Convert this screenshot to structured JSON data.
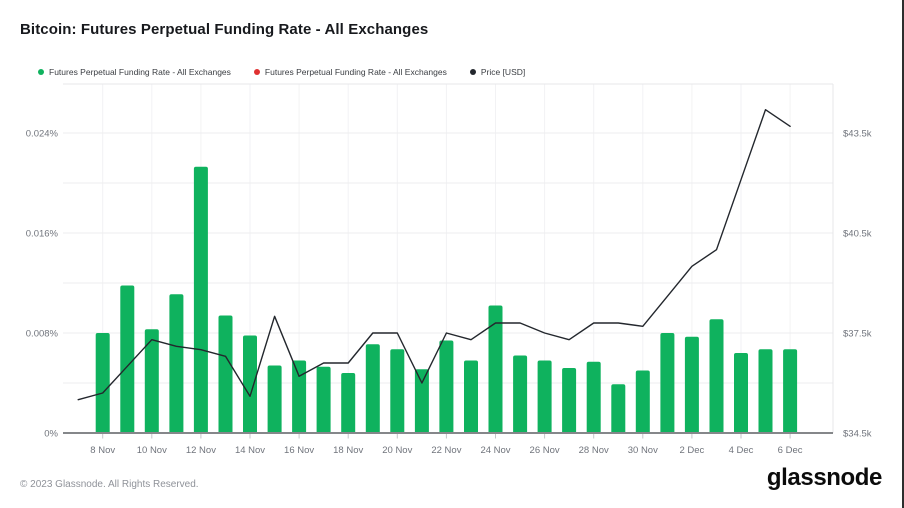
{
  "page": {
    "title": "Bitcoin: Futures Perpetual Funding Rate - All Exchanges",
    "footer_copyright": "© 2023 Glassnode. All Rights Reserved.",
    "brand_wordmark": "glassnode"
  },
  "colors": {
    "funding_positive": "#0fb25e",
    "funding_negative": "#e03131",
    "price_line": "#23272d",
    "gridline": "#ededef",
    "plot_border": "#e7e7ea",
    "axis_line": "#85878a",
    "tick_mark": "#c4c6c9",
    "tick_text": "#70747c"
  },
  "legend": [
    {
      "label": "Futures Perpetual Funding Rate - All Exchanges",
      "color": "#0fb25e"
    },
    {
      "label": "Futures Perpetual Funding Rate - All Exchanges",
      "color": "#e03131"
    },
    {
      "label": "Price [USD]",
      "color": "#23272d"
    }
  ],
  "chart_data": {
    "type": "combo (bar + line)",
    "title": "Bitcoin: Futures Perpetual Funding Rate - All Exchanges",
    "grid": "horizontal + vertical, light gray",
    "x_all": [
      "7 Nov",
      "8 Nov",
      "9 Nov",
      "10 Nov",
      "11 Nov",
      "12 Nov",
      "13 Nov",
      "14 Nov",
      "15 Nov",
      "16 Nov",
      "17 Nov",
      "18 Nov",
      "19 Nov",
      "20 Nov",
      "21 Nov",
      "22 Nov",
      "23 Nov",
      "24 Nov",
      "25 Nov",
      "26 Nov",
      "27 Nov",
      "28 Nov",
      "29 Nov",
      "30 Nov",
      "1 Dec",
      "2 Dec",
      "3 Dec",
      "4 Dec",
      "5 Dec",
      "6 Dec"
    ],
    "x_tick_labels": [
      "8 Nov",
      "10 Nov",
      "12 Nov",
      "14 Nov",
      "16 Nov",
      "18 Nov",
      "20 Nov",
      "22 Nov",
      "24 Nov",
      "26 Nov",
      "28 Nov",
      "30 Nov",
      "2 Dec",
      "4 Dec",
      "6 Dec"
    ],
    "left_axis": {
      "unit": "%",
      "tick_labels": [
        "0%",
        "0.008%",
        "0.016%",
        "0.024%"
      ],
      "tick_values": [
        0,
        0.008,
        0.016,
        0.024
      ],
      "grid_step": 0.004,
      "range": [
        0,
        0.0279
      ]
    },
    "right_axis": {
      "unit": "USD (thousands)",
      "tick_labels": [
        "$34.5k",
        "$37.5k",
        "$40.5k",
        "$43.5k"
      ],
      "tick_values": [
        34.5,
        37.5,
        40.5,
        43.5
      ],
      "range": [
        34.5,
        44.97
      ]
    },
    "series": [
      {
        "name": "Futures Perpetual Funding Rate - All Exchanges",
        "type": "bar",
        "axis": "left",
        "color": "#0fb25e",
        "x": [
          "8 Nov",
          "9 Nov",
          "10 Nov",
          "11 Nov",
          "12 Nov",
          "13 Nov",
          "14 Nov",
          "15 Nov",
          "16 Nov",
          "17 Nov",
          "18 Nov",
          "19 Nov",
          "20 Nov",
          "21 Nov",
          "22 Nov",
          "23 Nov",
          "24 Nov",
          "25 Nov",
          "26 Nov",
          "27 Nov",
          "28 Nov",
          "29 Nov",
          "30 Nov",
          "1 Dec",
          "2 Dec",
          "3 Dec",
          "4 Dec",
          "5 Dec",
          "6 Dec"
        ],
        "values": [
          0.008,
          0.0118,
          0.0083,
          0.0111,
          0.0213,
          0.0094,
          0.0078,
          0.0054,
          0.0058,
          0.0053,
          0.0048,
          0.0071,
          0.0067,
          0.0051,
          0.0074,
          0.0058,
          0.0102,
          0.0062,
          0.0058,
          0.0052,
          0.0057,
          0.0039,
          0.005,
          0.008,
          0.0077,
          0.0091,
          0.0064,
          0.0067,
          0.0067
        ]
      },
      {
        "name": "Futures Perpetual Funding Rate - All Exchanges",
        "type": "bar",
        "axis": "left",
        "color": "#e03131",
        "x": [],
        "values": []
      },
      {
        "name": "Price [USD]",
        "type": "line",
        "axis": "right",
        "color": "#23272d",
        "x": [
          "7 Nov",
          "8 Nov",
          "9 Nov",
          "10 Nov",
          "11 Nov",
          "12 Nov",
          "13 Nov",
          "14 Nov",
          "15 Nov",
          "16 Nov",
          "17 Nov",
          "18 Nov",
          "19 Nov",
          "20 Nov",
          "21 Nov",
          "22 Nov",
          "23 Nov",
          "24 Nov",
          "25 Nov",
          "26 Nov",
          "27 Nov",
          "28 Nov",
          "29 Nov",
          "30 Nov",
          "1 Dec",
          "2 Dec",
          "3 Dec",
          "4 Dec",
          "5 Dec",
          "6 Dec"
        ],
        "values": [
          35.5,
          35.7,
          36.5,
          37.3,
          37.1,
          37.0,
          36.8,
          35.6,
          38.0,
          36.2,
          36.6,
          36.6,
          37.5,
          37.5,
          36.0,
          37.5,
          37.3,
          37.8,
          37.8,
          37.5,
          37.3,
          37.8,
          37.8,
          37.7,
          38.6,
          39.5,
          40.0,
          42.1,
          44.2,
          43.7
        ]
      }
    ]
  }
}
